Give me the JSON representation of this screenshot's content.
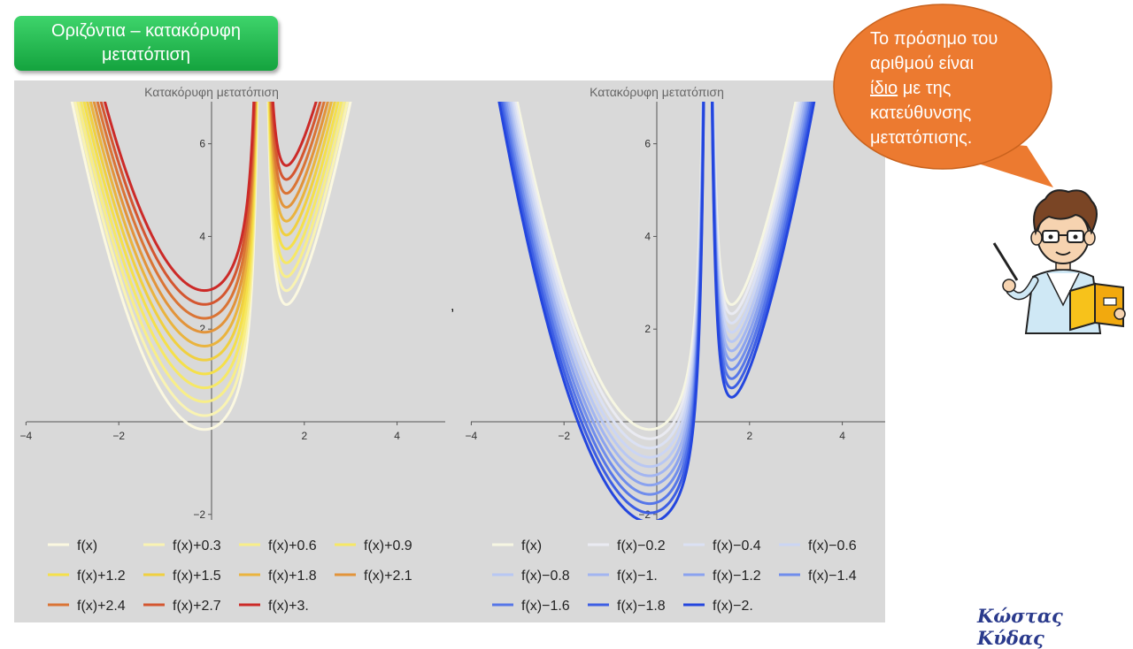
{
  "header": {
    "title_line1": "Οριζόντια – κατακόρυφη",
    "title_line2": "μετατόπιση"
  },
  "separator": ",",
  "bubble": {
    "line1": "Το πρόσημο του",
    "line2": "αριθμού είναι",
    "line3_underlined": "ίδιο",
    "line3_rest": " με της",
    "line4": "κατεύθυνσης",
    "line5": "μετατόπισης."
  },
  "signature": "Κώστας Κύδας",
  "chart_data": [
    {
      "type": "line",
      "title": "Κατακόρυφη μετατόπιση",
      "xlim": [
        -4,
        5
      ],
      "ylim": [
        -2,
        7
      ],
      "xticks": [
        "−4",
        "−2",
        "2",
        "4"
      ],
      "yticks": [
        "−2",
        "2",
        "4",
        "6"
      ],
      "series": [
        {
          "name": "f(x)",
          "shift": 0,
          "color": "#fbf8e0"
        },
        {
          "name": "f(x)+0.3",
          "shift": 0.3,
          "color": "#f9f3b2"
        },
        {
          "name": "f(x)+0.6",
          "shift": 0.6,
          "color": "#f8ee88"
        },
        {
          "name": "f(x)+0.9",
          "shift": 0.9,
          "color": "#f6e865"
        },
        {
          "name": "f(x)+1.2",
          "shift": 1.2,
          "color": "#f5e04a"
        },
        {
          "name": "f(x)+1.5",
          "shift": 1.5,
          "color": "#f0d040"
        },
        {
          "name": "f(x)+1.8",
          "shift": 1.8,
          "color": "#eab43e"
        },
        {
          "name": "f(x)+2.1",
          "shift": 2.1,
          "color": "#e2943a"
        },
        {
          "name": "f(x)+2.4",
          "shift": 2.4,
          "color": "#da7435"
        },
        {
          "name": "f(x)+2.7",
          "shift": 2.7,
          "color": "#d45630"
        },
        {
          "name": "f(x)+3.",
          "shift": 3.0,
          "color": "#cc2a28"
        }
      ]
    },
    {
      "type": "line",
      "title": "Κατακόρυφη μετατόπιση",
      "xlim": [
        -4,
        5
      ],
      "ylim": [
        -2,
        7
      ],
      "xticks": [
        "−4",
        "−2",
        "2",
        "4"
      ],
      "yticks": [
        "−2",
        "2",
        "4",
        "6"
      ],
      "series": [
        {
          "name": "f(x)",
          "shift": 0,
          "color": "#f6f6e2"
        },
        {
          "name": "f(x)−0.2",
          "shift": -0.2,
          "color": "#eaebf2"
        },
        {
          "name": "f(x)−0.4",
          "shift": -0.4,
          "color": "#dbe1f4"
        },
        {
          "name": "f(x)−0.6",
          "shift": -0.6,
          "color": "#cbd5f4"
        },
        {
          "name": "f(x)−0.8",
          "shift": -0.8,
          "color": "#b8c7f3"
        },
        {
          "name": "f(x)−1.",
          "shift": -1.0,
          "color": "#a2b5f1"
        },
        {
          "name": "f(x)−1.2",
          "shift": -1.2,
          "color": "#8aa2ef"
        },
        {
          "name": "f(x)−1.4",
          "shift": -1.4,
          "color": "#708dec"
        },
        {
          "name": "f(x)−1.6",
          "shift": -1.6,
          "color": "#5676e8"
        },
        {
          "name": "f(x)−1.8",
          "shift": -1.8,
          "color": "#3d5ee4"
        },
        {
          "name": "f(x)−2.",
          "shift": -2.0,
          "color": "#2446de"
        }
      ]
    }
  ]
}
